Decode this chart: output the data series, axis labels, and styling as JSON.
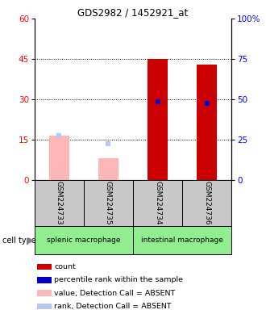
{
  "title": "GDS2982 / 1452921_at",
  "samples": [
    "GSM224733",
    "GSM224735",
    "GSM224734",
    "GSM224736"
  ],
  "groups": [
    {
      "name": "splenic macrophage",
      "color": "#90EE90",
      "cols": [
        0,
        1
      ]
    },
    {
      "name": "intestinal macrophage",
      "color": "#90EE90",
      "cols": [
        2,
        3
      ]
    }
  ],
  "ylim_left": [
    0,
    60
  ],
  "ylim_right": [
    0,
    100
  ],
  "yticks_left": [
    0,
    15,
    30,
    45,
    60
  ],
  "yticks_right": [
    0,
    25,
    50,
    75,
    100
  ],
  "ytick_labels_right": [
    "0",
    "25",
    "50",
    "75",
    "100%"
  ],
  "absent_bar_color": "#FFB6B6",
  "absent_rank_color": "#B8C8E8",
  "present_bar_color": "#CC0000",
  "present_rank_color": "#0000CC",
  "value_data": [
    {
      "sample_idx": 0,
      "value": 16.5,
      "absent": true
    },
    {
      "sample_idx": 1,
      "value": 8.0,
      "absent": true
    },
    {
      "sample_idx": 2,
      "value": 45.0,
      "absent": false
    },
    {
      "sample_idx": 3,
      "value": 43.0,
      "absent": false
    }
  ],
  "rank_data": [
    {
      "sample_idx": 0,
      "rank": 27.5,
      "absent": true
    },
    {
      "sample_idx": 1,
      "rank": 22.5,
      "absent": true
    },
    {
      "sample_idx": 2,
      "rank": 48.5,
      "absent": false
    },
    {
      "sample_idx": 3,
      "rank": 47.5,
      "absent": false
    }
  ],
  "bar_width": 0.4,
  "rank_marker_size": 5,
  "bg_color": "#C8C8C8",
  "cell_type_label": "cell type",
  "legend_items": [
    {
      "color": "#CC0000",
      "label": "count"
    },
    {
      "color": "#0000CC",
      "label": "percentile rank within the sample"
    },
    {
      "color": "#FFB6B6",
      "label": "value, Detection Call = ABSENT"
    },
    {
      "color": "#B8C8E8",
      "label": "rank, Detection Call = ABSENT"
    }
  ]
}
